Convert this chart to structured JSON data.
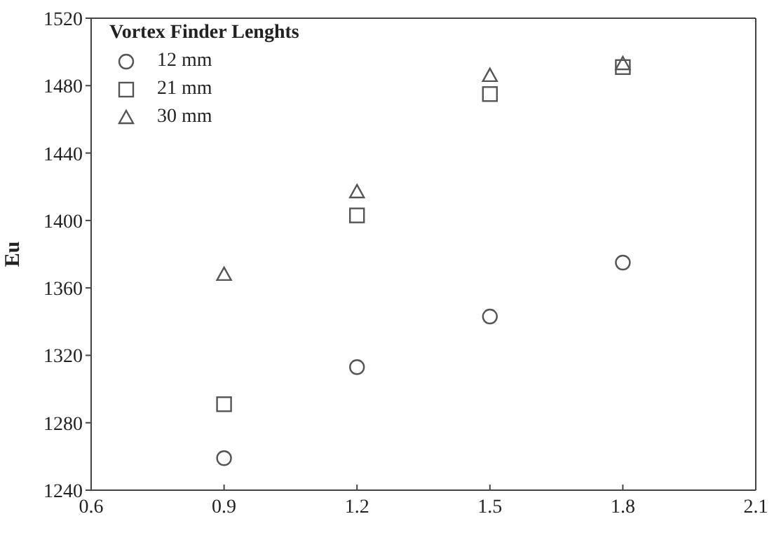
{
  "chart_data": {
    "type": "scatter",
    "ylabel": "Eu",
    "legend_title": "Vortex Finder Lenghts",
    "legend": "top left",
    "x": [
      0.9,
      1.2,
      1.5,
      1.8
    ],
    "xlim": [
      0.6,
      2.1
    ],
    "xticks": [
      0.6,
      0.9,
      1.2,
      1.5,
      1.8,
      2.1
    ],
    "ylim": [
      1240,
      1520
    ],
    "yticks": [
      1240,
      1280,
      1320,
      1360,
      1400,
      1440,
      1480,
      1520
    ],
    "series": [
      {
        "name": "12 mm",
        "color": "#555555",
        "marker": "circle",
        "values": [
          1259,
          1313,
          1343,
          1375
        ]
      },
      {
        "name": "21 mm",
        "color": "#555555",
        "marker": "square",
        "values": [
          1291,
          1403,
          1475,
          1491
        ]
      },
      {
        "name": "30 mm",
        "color": "#555555",
        "marker": "triangle",
        "values": [
          1368,
          1417,
          1486,
          1493
        ]
      }
    ]
  }
}
